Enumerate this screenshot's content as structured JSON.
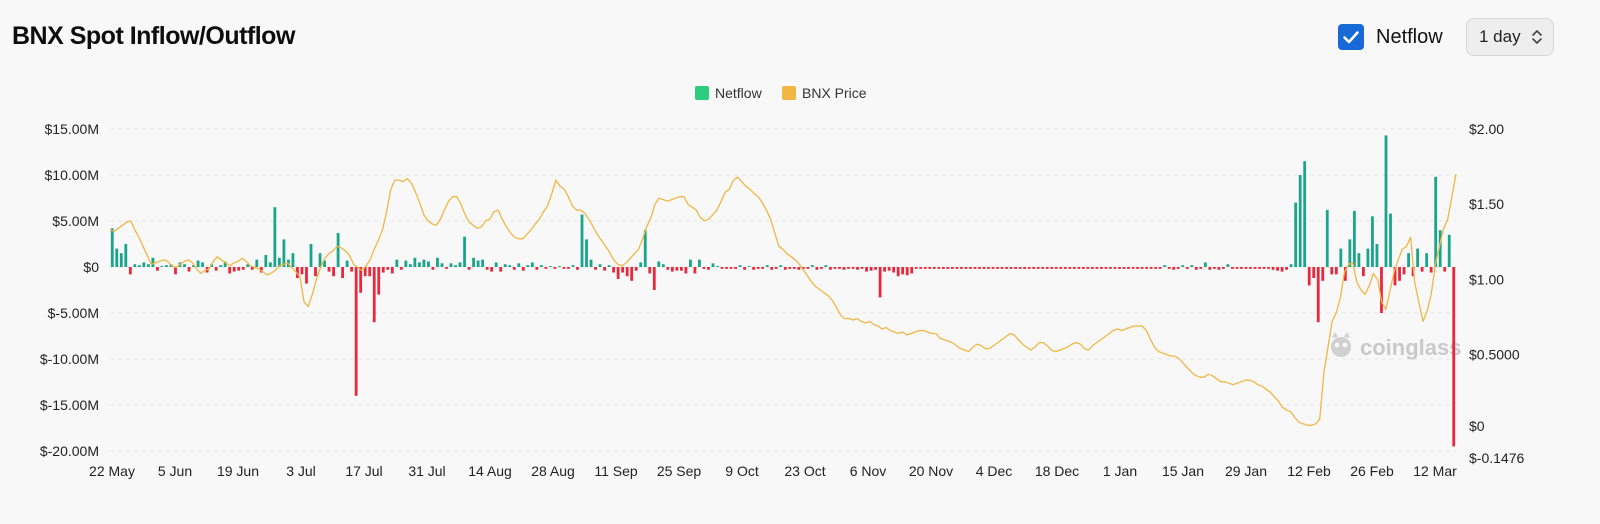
{
  "header": {
    "title": "BNX Spot Inflow/Outflow",
    "toggle_label": "Netflow",
    "toggle_checked": true,
    "interval": "1 day"
  },
  "watermark": "coinglass",
  "colors": {
    "positive": "#1aa58a",
    "negative": "#e8283c",
    "price": "#f0b744",
    "legend_netflow": "#2ecc7f",
    "grid": "#e6e6e6",
    "checkbox": "#1769d8"
  },
  "chart_data": {
    "type": "bar",
    "legend": [
      {
        "name": "Netflow",
        "color": "#2ecc7f"
      },
      {
        "name": "BNX Price",
        "color": "#f0b744"
      }
    ],
    "x_labels": [
      "22 May",
      "5 Jun",
      "19 Jun",
      "3 Jul",
      "17 Jul",
      "31 Jul",
      "14 Aug",
      "28 Aug",
      "11 Sep",
      "25 Sep",
      "9 Oct",
      "23 Oct",
      "6 Nov",
      "20 Nov",
      "4 Dec",
      "18 Dec",
      "1 Jan",
      "15 Jan",
      "29 Jan",
      "12 Feb",
      "26 Feb",
      "12 Mar"
    ],
    "y_left_ticks": [
      "$15.00M",
      "$10.00M",
      "$5.00M",
      "$0",
      "$-5.00M",
      "$-10.00M",
      "$-15.00M",
      "$-20.00M"
    ],
    "y_right_ticks": [
      "$2.00",
      "$1.50",
      "$1.00",
      "$0.5000",
      "$0",
      "$-0.1476"
    ],
    "ylim_left": [
      -20,
      15
    ],
    "ylim_right": [
      -0.1476,
      2.0
    ],
    "series": [
      {
        "name": "Netflow",
        "unit": "$M",
        "values": [
          4.2,
          2.0,
          1.5,
          2.5,
          -0.8,
          0.3,
          0.2,
          0.5,
          0.3,
          1.0,
          -0.4,
          0.1,
          0.2,
          0.3,
          -0.8,
          0.5,
          0.3,
          -0.5,
          0.2,
          0.7,
          0.5,
          -0.6,
          0.3,
          -0.4,
          0.2,
          0.6,
          -0.7,
          -0.5,
          -0.4,
          -0.3,
          0.3,
          -0.3,
          0.8,
          -0.6,
          1.3,
          0.5,
          6.5,
          1.0,
          3.0,
          0.8,
          1.5,
          -1.2,
          -0.8,
          -1.8,
          2.5,
          -1.0,
          1.5,
          0.7,
          -0.5,
          -1.0,
          3.7,
          -1.2,
          0.7,
          -0.5,
          -14.0,
          -2.8,
          -1.0,
          -1.0,
          -6.0,
          -3.0,
          -0.6,
          -0.3,
          -0.7,
          0.8,
          -0.3,
          0.7,
          0.3,
          1.0,
          0.5,
          0.8,
          0.6,
          -0.3,
          1.0,
          0.4,
          -0.2,
          0.4,
          0.2,
          0.5,
          3.3,
          -0.3,
          1.0,
          0.7,
          0.8,
          -0.3,
          -0.5,
          0.5,
          -0.5,
          0.3,
          0.2,
          -0.3,
          0.4,
          -0.4,
          0.2,
          0.5,
          -0.3,
          0.2,
          -0.2,
          0.1,
          -0.2,
          0.1,
          -0.2,
          -0.2,
          0.2,
          -0.3,
          5.7,
          3.0,
          0.8,
          -0.3,
          0.3,
          -0.4,
          0.2,
          -0.6,
          -1.3,
          -0.6,
          -1.0,
          -1.5,
          -0.4,
          0.5,
          4.0,
          -0.7,
          -2.5,
          0.6,
          0.3,
          -0.3,
          -0.5,
          -0.4,
          -0.4,
          -0.7,
          0.8,
          -0.7,
          0.8,
          -0.2,
          -0.3,
          0.4,
          0.1,
          -0.2,
          -0.2,
          -0.2,
          -0.2,
          0.2,
          -0.3,
          0.1,
          -0.3,
          -0.2,
          -0.2,
          0.2,
          -0.3,
          -0.2,
          0.2,
          -0.3,
          -0.2,
          -0.2,
          -0.3,
          -0.2,
          -0.2,
          0.2,
          -0.3,
          -0.2,
          0.2,
          -0.3,
          -0.2,
          -0.2,
          -0.3,
          -0.2,
          -0.2,
          -0.3,
          -0.2,
          -0.5,
          -0.4,
          -0.3,
          -3.3,
          -0.5,
          -0.4,
          -0.6,
          -1.0,
          -0.8,
          -0.9,
          -0.7,
          -0.2,
          -0.2,
          -0.2,
          -0.2,
          -0.2,
          -0.2,
          -0.2,
          -0.2,
          -0.2,
          -0.2,
          -0.2,
          -0.2,
          -0.2,
          -0.2,
          -0.2,
          -0.2,
          -0.2,
          -0.2,
          -0.2,
          -0.2,
          -0.2,
          -0.2,
          -0.2,
          -0.2,
          -0.2,
          -0.2,
          -0.2,
          -0.2,
          -0.2,
          -0.2,
          -0.2,
          -0.2,
          -0.2,
          -0.2,
          -0.2,
          -0.2,
          -0.2,
          -0.2,
          -0.2,
          -0.2,
          -0.2,
          -0.2,
          -0.2,
          -0.2,
          -0.2,
          -0.2,
          -0.2,
          -0.2,
          -0.2,
          -0.2,
          -0.2,
          -0.2,
          -0.2,
          -0.2,
          -0.2,
          0.2,
          -0.2,
          -0.3,
          -0.2,
          0.2,
          -0.2,
          0.2,
          -0.3,
          -0.2,
          0.5,
          -0.3,
          -0.2,
          -0.3,
          -0.2,
          0.3,
          -0.2,
          -0.2,
          -0.2,
          -0.2,
          -0.2,
          -0.2,
          -0.2,
          -0.2,
          -0.2,
          -0.3,
          -0.4,
          -0.5,
          -0.3,
          0.3,
          7.0,
          10.0,
          11.5,
          -2.0,
          -1.2,
          -6.0,
          -1.5,
          6.2,
          -0.8,
          -0.8,
          2.0,
          -1.5,
          3.0,
          6.1,
          1.5,
          -1.0,
          2.0,
          5.5,
          2.5,
          -5.0,
          14.3,
          5.8,
          -2.0,
          -1.5,
          -0.8,
          1.5,
          -1.0,
          2.0,
          -0.5,
          1.5,
          -0.6,
          9.8,
          4.0,
          -0.5,
          3.5,
          -19.5
        ]
      },
      {
        "name": "BNX Price",
        "unit": "$",
        "values": [
          1.33,
          1.32,
          1.34,
          1.36,
          1.38,
          1.39,
          1.33,
          1.28,
          1.22,
          1.16,
          1.1,
          1.11,
          1.12,
          1.13,
          1.12,
          1.09,
          1.08,
          1.1,
          1.12,
          1.13,
          1.11,
          1.07,
          1.04,
          1.06,
          1.07,
          1.12,
          1.15,
          1.13,
          1.11,
          1.09,
          1.11,
          1.12,
          1.14,
          1.12,
          1.09,
          1.08,
          1.07,
          1.05,
          1.03,
          1.04,
          1.06,
          1.09,
          1.1,
          1.11,
          1.08,
          1.05,
          1.02,
          0.85,
          0.82,
          0.9,
          1.0,
          1.08,
          1.14,
          1.17,
          1.19,
          1.22,
          1.21,
          1.19,
          1.16,
          1.1,
          1.08,
          1.06,
          1.09,
          1.13,
          1.2,
          1.26,
          1.33,
          1.45,
          1.6,
          1.66,
          1.66,
          1.65,
          1.67,
          1.64,
          1.58,
          1.51,
          1.43,
          1.39,
          1.37,
          1.36,
          1.4,
          1.46,
          1.52,
          1.55,
          1.55,
          1.5,
          1.43,
          1.38,
          1.36,
          1.34,
          1.35,
          1.39,
          1.4,
          1.45,
          1.46,
          1.4,
          1.35,
          1.31,
          1.28,
          1.27,
          1.27,
          1.3,
          1.33,
          1.37,
          1.4,
          1.45,
          1.49,
          1.57,
          1.66,
          1.62,
          1.6,
          1.55,
          1.49,
          1.46,
          1.46,
          1.44,
          1.4,
          1.35,
          1.3,
          1.26,
          1.22,
          1.18,
          1.13,
          1.1,
          1.09,
          1.11,
          1.14,
          1.17,
          1.2,
          1.27,
          1.35,
          1.41,
          1.5,
          1.54,
          1.53,
          1.52,
          1.53,
          1.54,
          1.55,
          1.55,
          1.5,
          1.48,
          1.46,
          1.41,
          1.39,
          1.4,
          1.43,
          1.46,
          1.52,
          1.58,
          1.6,
          1.66,
          1.68,
          1.65,
          1.62,
          1.6,
          1.57,
          1.55,
          1.51,
          1.46,
          1.4,
          1.31,
          1.22,
          1.2,
          1.17,
          1.15,
          1.13,
          1.1,
          1.06,
          1.02,
          0.98,
          0.95,
          0.93,
          0.91,
          0.89,
          0.86,
          0.81,
          0.76,
          0.74,
          0.74,
          0.73,
          0.74,
          0.72,
          0.71,
          0.72,
          0.7,
          0.69,
          0.67,
          0.68,
          0.66,
          0.65,
          0.64,
          0.65,
          0.63,
          0.64,
          0.65,
          0.66,
          0.66,
          0.65,
          0.64,
          0.64,
          0.61,
          0.6,
          0.59,
          0.58,
          0.56,
          0.54,
          0.53,
          0.52,
          0.55,
          0.57,
          0.56,
          0.54,
          0.54,
          0.56,
          0.58,
          0.6,
          0.62,
          0.64,
          0.63,
          0.6,
          0.57,
          0.55,
          0.53,
          0.55,
          0.58,
          0.58,
          0.56,
          0.53,
          0.52,
          0.53,
          0.54,
          0.55,
          0.57,
          0.58,
          0.57,
          0.54,
          0.53,
          0.56,
          0.58,
          0.6,
          0.62,
          0.64,
          0.66,
          0.67,
          0.66,
          0.67,
          0.68,
          0.69,
          0.69,
          0.69,
          0.66,
          0.6,
          0.55,
          0.52,
          0.51,
          0.5,
          0.49,
          0.49,
          0.47,
          0.44,
          0.41,
          0.38,
          0.36,
          0.35,
          0.35,
          0.37,
          0.36,
          0.34,
          0.32,
          0.32,
          0.31,
          0.3,
          0.31,
          0.32,
          0.33,
          0.33,
          0.32,
          0.3,
          0.29,
          0.27,
          0.25,
          0.22,
          0.19,
          0.15,
          0.13,
          0.12,
          0.08,
          0.05,
          0.04,
          0.03,
          0.03,
          0.04,
          0.07,
          0.38,
          0.55,
          0.72,
          0.78,
          0.88,
          1.05,
          1.1,
          1.11,
          0.98,
          0.93,
          0.9,
          0.96,
          1.04,
          1.0,
          0.85,
          0.8,
          0.92,
          1.05,
          1.13,
          1.2,
          1.22,
          1.28,
          0.98,
          0.85,
          0.72,
          0.79,
          0.9,
          1.1,
          1.22,
          1.34,
          1.4,
          1.55,
          1.7
        ]
      }
    ]
  }
}
